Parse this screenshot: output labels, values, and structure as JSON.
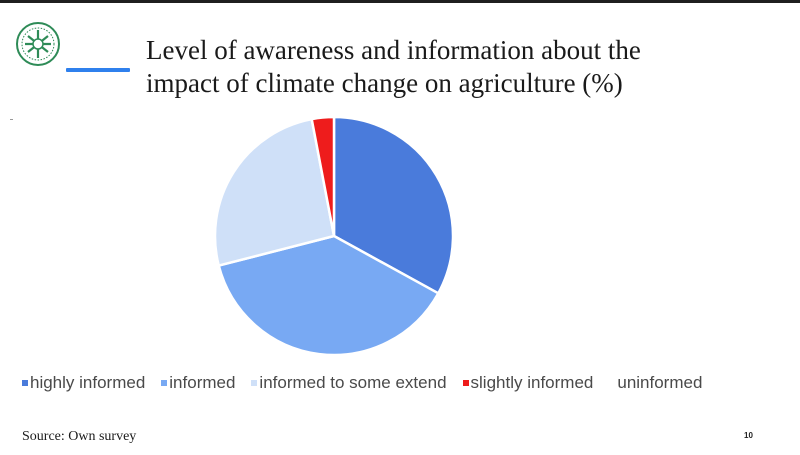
{
  "slide": {
    "title_line1": "Level of awareness and information about the",
    "title_line2": "impact of climate change on agriculture (%)",
    "accent_color": "#2f80ed",
    "source": "Source: Own survey",
    "page_number": "10"
  },
  "chart_data": {
    "type": "pie",
    "title": "",
    "start_angle_deg": 0,
    "direction": "clockwise",
    "slices": [
      {
        "label": "highly informed",
        "value": 33,
        "color": "#4a7bdb"
      },
      {
        "label": "informed",
        "value": 38,
        "color": "#78a9f3"
      },
      {
        "label": "informed to some extend",
        "value": 26,
        "color": "#cfe0f8"
      },
      {
        "label": "slightly informed",
        "value": 3,
        "color": "#ee1c1c"
      },
      {
        "label": "uninformed",
        "value": 0,
        "color": "#ffffff"
      }
    ],
    "legend_position": "bottom"
  }
}
